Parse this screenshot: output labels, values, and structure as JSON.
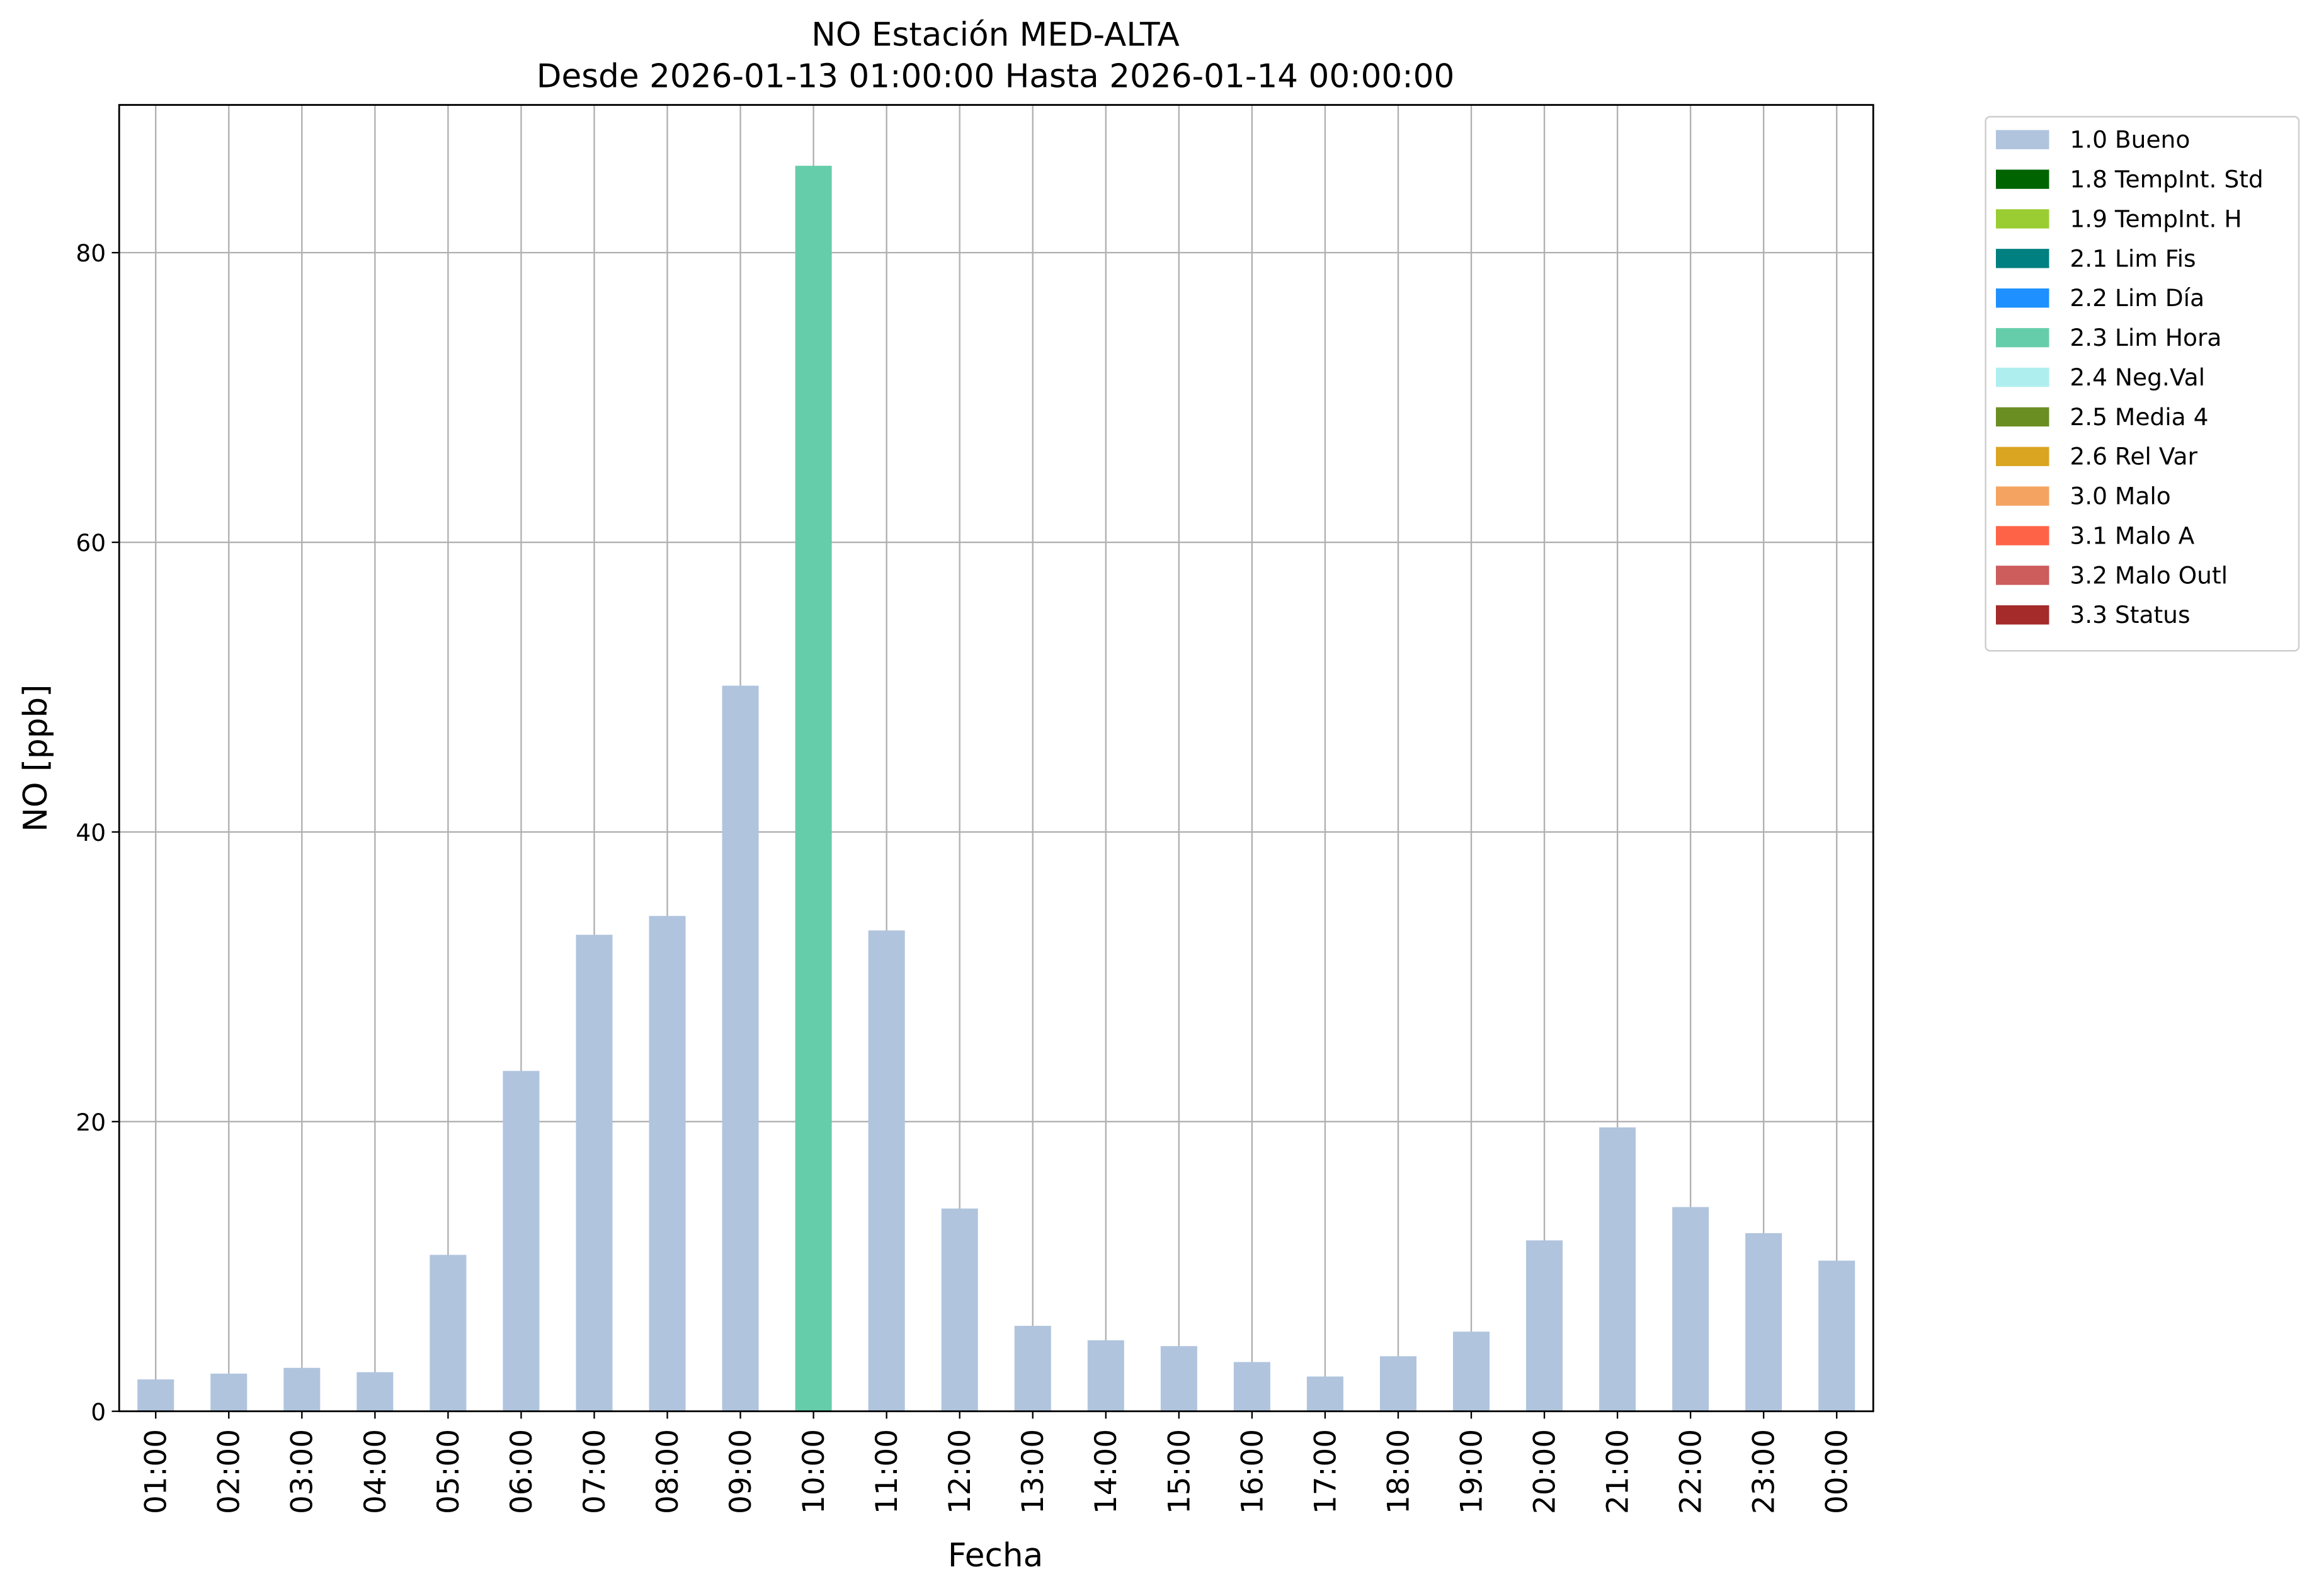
{
  "chart_data": {
    "type": "stacked_bar",
    "title": "NO Estación MED-ALTA",
    "subtitle": "Desde 2026-01-13 01:00:00 Hasta 2026-01-14 00:00:00",
    "x_label": "Fecha",
    "y_label": "NO [ppb]",
    "categories": [
      "01:00",
      "02:00",
      "03:00",
      "04:00",
      "05:00",
      "06:00",
      "07:00",
      "08:00",
      "09:00",
      "10:00",
      "11:00",
      "12:00",
      "13:00",
      "14:00",
      "15:00",
      "16:00",
      "17:00",
      "18:00",
      "19:00",
      "20:00",
      "21:00",
      "22:00",
      "23:00",
      "00:00"
    ],
    "ylim": [
      0,
      90.2
    ],
    "yticks": [
      0,
      20,
      40,
      60,
      80
    ],
    "grid": true,
    "legend_position": "outside-upper-right",
    "series": [
      {
        "name": "1.0 Bueno",
        "color": "#b0c4de",
        "values": [
          2.2,
          2.6,
          3.0,
          2.7,
          10.8,
          23.5,
          32.9,
          34.2,
          50.1,
          null,
          33.2,
          14.0,
          5.9,
          4.9,
          4.5,
          3.4,
          2.4,
          3.8,
          5.5,
          11.8,
          19.6,
          14.1,
          12.3,
          10.4
        ]
      },
      {
        "name": "1.8 TempInt. Std",
        "color": "#006400",
        "values": [
          null,
          null,
          null,
          null,
          null,
          null,
          null,
          null,
          null,
          null,
          null,
          null,
          null,
          null,
          null,
          null,
          null,
          null,
          null,
          null,
          null,
          null,
          null,
          null
        ]
      },
      {
        "name": "1.9 TempInt. H",
        "color": "#9acd32",
        "values": [
          null,
          null,
          null,
          null,
          null,
          null,
          null,
          null,
          null,
          null,
          null,
          null,
          null,
          null,
          null,
          null,
          null,
          null,
          null,
          null,
          null,
          null,
          null,
          null
        ]
      },
      {
        "name": "2.1 Lim Fis",
        "color": "#008080",
        "values": [
          null,
          null,
          null,
          null,
          null,
          null,
          null,
          null,
          null,
          null,
          null,
          null,
          null,
          null,
          null,
          null,
          null,
          null,
          null,
          null,
          null,
          null,
          null,
          null
        ]
      },
      {
        "name": "2.2 Lim Día",
        "color": "#1e90ff",
        "values": [
          null,
          null,
          null,
          null,
          null,
          null,
          null,
          null,
          null,
          null,
          null,
          null,
          null,
          null,
          null,
          null,
          null,
          null,
          null,
          null,
          null,
          null,
          null,
          null
        ]
      },
      {
        "name": "2.3 Lim Hora",
        "color": "#66cdaa",
        "values": [
          null,
          null,
          null,
          null,
          null,
          null,
          null,
          null,
          null,
          86,
          null,
          null,
          null,
          null,
          null,
          null,
          null,
          null,
          null,
          null,
          null,
          null,
          null,
          null
        ]
      },
      {
        "name": "2.4 Neg.Val",
        "color": "#afeeee",
        "values": [
          null,
          null,
          null,
          null,
          null,
          null,
          null,
          null,
          null,
          null,
          null,
          null,
          null,
          null,
          null,
          null,
          null,
          null,
          null,
          null,
          null,
          null,
          null,
          null
        ]
      },
      {
        "name": "2.5 Media 4",
        "color": "#6b8e23",
        "values": [
          null,
          null,
          null,
          null,
          null,
          null,
          null,
          null,
          null,
          null,
          null,
          null,
          null,
          null,
          null,
          null,
          null,
          null,
          null,
          null,
          null,
          null,
          null,
          null
        ]
      },
      {
        "name": "2.6 Rel Var",
        "color": "#daa520",
        "values": [
          null,
          null,
          null,
          null,
          null,
          null,
          null,
          null,
          null,
          null,
          null,
          null,
          null,
          null,
          null,
          null,
          null,
          null,
          null,
          null,
          null,
          null,
          null,
          null
        ]
      },
      {
        "name": "3.0 Malo",
        "color": "#f4a460",
        "values": [
          null,
          null,
          null,
          null,
          null,
          null,
          null,
          null,
          null,
          null,
          null,
          null,
          null,
          null,
          null,
          null,
          null,
          null,
          null,
          null,
          null,
          null,
          null,
          null
        ]
      },
      {
        "name": "3.1 Malo A",
        "color": "#ff6347",
        "values": [
          null,
          null,
          null,
          null,
          null,
          null,
          null,
          null,
          null,
          null,
          null,
          null,
          null,
          null,
          null,
          null,
          null,
          null,
          null,
          null,
          null,
          null,
          null,
          null
        ]
      },
      {
        "name": "3.2 Malo Outl",
        "color": "#cd5c5c",
        "values": [
          null,
          null,
          null,
          null,
          null,
          null,
          null,
          null,
          null,
          null,
          null,
          null,
          null,
          null,
          null,
          null,
          null,
          null,
          null,
          null,
          null,
          null,
          null,
          null
        ]
      },
      {
        "name": "3.3 Status",
        "color": "#a52a2a",
        "values": [
          null,
          null,
          null,
          null,
          null,
          null,
          null,
          null,
          null,
          null,
          null,
          null,
          null,
          null,
          null,
          null,
          null,
          null,
          null,
          null,
          null,
          null,
          null,
          null
        ]
      }
    ]
  }
}
